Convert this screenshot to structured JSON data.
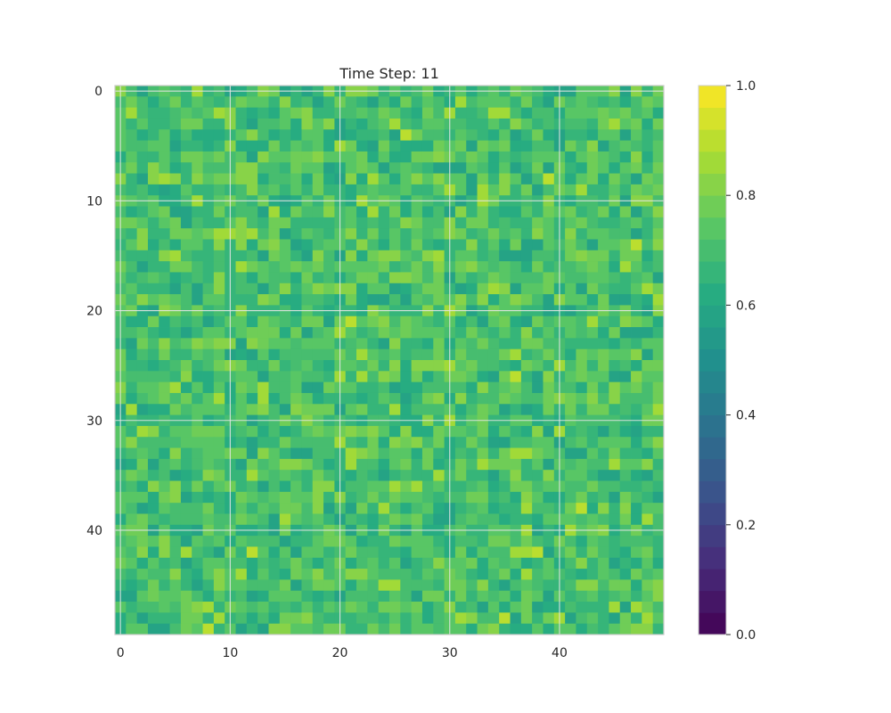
{
  "chart_data": {
    "type": "heatmap",
    "title": "Time Step: 11",
    "xlabel": "",
    "ylabel": "",
    "rows": 50,
    "cols": 50,
    "xlim": [
      -0.5,
      49.5
    ],
    "ylim": [
      49.5,
      -0.5
    ],
    "x_ticks": [
      0,
      10,
      20,
      30,
      40
    ],
    "y_ticks": [
      0,
      10,
      20,
      30,
      40
    ],
    "grid": true,
    "colormap": "viridis",
    "colorbar": {
      "vmin": 0.0,
      "vmax": 1.0,
      "levels": 25,
      "ticks": [
        "0.0",
        "0.2",
        "0.4",
        "0.6",
        "0.8",
        "1.0"
      ],
      "tick_values": [
        0.0,
        0.2,
        0.4,
        0.6,
        0.8,
        1.0
      ]
    },
    "value_distribution": {
      "mean": 0.71,
      "spread": 0.09,
      "min": 0.56,
      "max": 0.92,
      "seed": 11
    }
  }
}
